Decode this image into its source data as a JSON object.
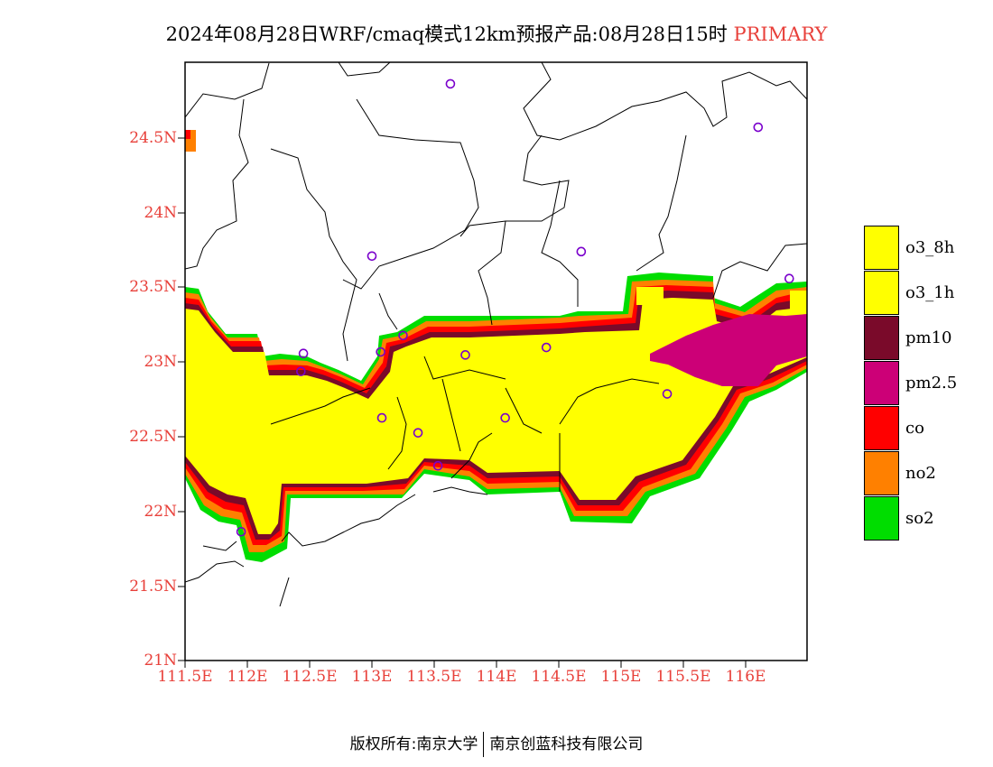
{
  "title": {
    "main": "2024年08月28日WRF/cmaq模式12km预报产品:08月28日15时",
    "tag": "PRIMARY"
  },
  "map": {
    "lat_ticks": [
      "24.5N",
      "24N",
      "23.5N",
      "23N",
      "22.5N",
      "22N",
      "21.5N",
      "21N"
    ],
    "lon_ticks": [
      "111.5E",
      "112E",
      "112.5E",
      "113E",
      "113.5E",
      "114E",
      "114.5E",
      "115E",
      "115.5E",
      "116E"
    ],
    "lon_range": [
      111.5,
      116.5
    ],
    "lat_range": [
      21.0,
      25.0
    ],
    "station_color": "#7a00cc",
    "stations": [
      {
        "lon": 113.63,
        "lat": 24.85
      },
      {
        "lon": 116.1,
        "lat": 24.56
      },
      {
        "lon": 113.0,
        "lat": 23.7
      },
      {
        "lon": 114.68,
        "lat": 23.73
      },
      {
        "lon": 116.35,
        "lat": 23.55
      },
      {
        "lon": 113.07,
        "lat": 23.06
      },
      {
        "lon": 112.45,
        "lat": 23.05
      },
      {
        "lon": 113.25,
        "lat": 23.17
      },
      {
        "lon": 113.75,
        "lat": 23.04
      },
      {
        "lon": 114.4,
        "lat": 23.09
      },
      {
        "lon": 112.43,
        "lat": 22.93
      },
      {
        "lon": 115.37,
        "lat": 22.78
      },
      {
        "lon": 113.08,
        "lat": 22.62
      },
      {
        "lon": 113.37,
        "lat": 22.52
      },
      {
        "lon": 114.07,
        "lat": 22.62
      },
      {
        "lon": 113.53,
        "lat": 22.3
      },
      {
        "lon": 111.95,
        "lat": 21.86
      }
    ]
  },
  "legend": {
    "items": [
      {
        "label": "o3_8h",
        "color": "#ffff00"
      },
      {
        "label": "o3_1h",
        "color": "#ffff00"
      },
      {
        "label": "pm10",
        "color": "#7a0a2a"
      },
      {
        "label": "pm2.5",
        "color": "#cc0077"
      },
      {
        "label": "co",
        "color": "#ff0000"
      },
      {
        "label": "no2",
        "color": "#ff8000"
      },
      {
        "label": "so2",
        "color": "#00dd00"
      }
    ]
  },
  "footer": {
    "left": "版权所有:南京大学",
    "right": "南京创蓝科技有限公司"
  }
}
